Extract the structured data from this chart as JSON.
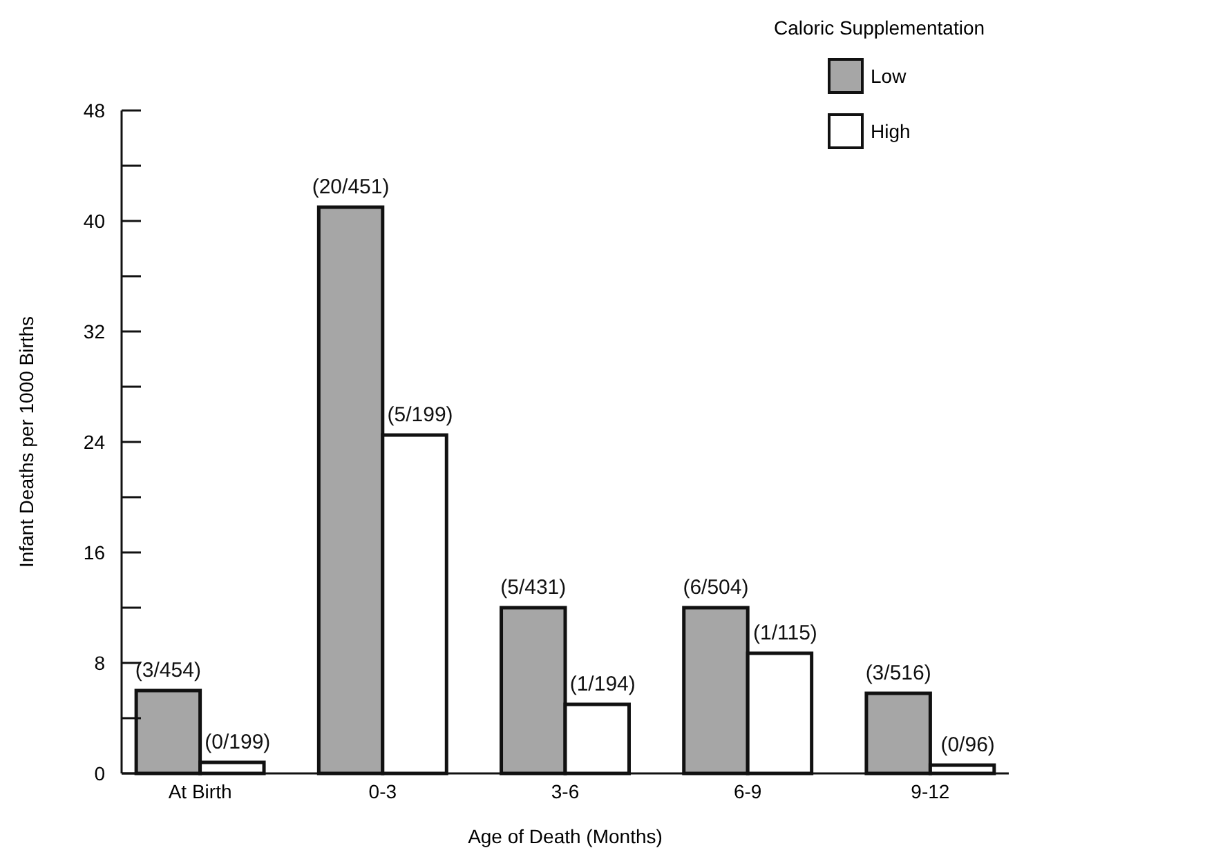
{
  "chart_data": {
    "type": "bar",
    "xlabel": "Age of Death (Months)",
    "ylabel": "Infant Deaths per 1000 Births",
    "legend_title": "Caloric Supplementation",
    "legend": "top right",
    "categories": [
      "At Birth",
      "0-3",
      "3-6",
      "6-9",
      "9-12"
    ],
    "series": [
      {
        "name": "Low",
        "color": "#a6a6a6",
        "values": [
          6,
          41,
          12,
          12,
          5.8
        ],
        "value_labels": [
          "(3/454)",
          "(20/451)",
          "(5/431)",
          "(6/504)",
          "(3/516)"
        ]
      },
      {
        "name": "High",
        "color": "#ffffff",
        "values": [
          0.8,
          24.5,
          5,
          8.7,
          0.6
        ],
        "value_labels": [
          "(0/199)",
          "(5/199)",
          "(1/194)",
          "(1/115)",
          "(0/96)"
        ]
      }
    ],
    "ylim": [
      0,
      48
    ],
    "yticks": [
      0,
      {
        "value": 4,
        "label": null
      },
      8,
      {
        "value": 12,
        "label": null
      },
      16,
      {
        "value": 20,
        "label": null
      },
      24,
      {
        "value": 28,
        "label": null
      },
      32,
      {
        "value": 36,
        "label": null
      },
      40,
      {
        "value": 44,
        "label": null
      },
      48
    ],
    "grid": false
  }
}
